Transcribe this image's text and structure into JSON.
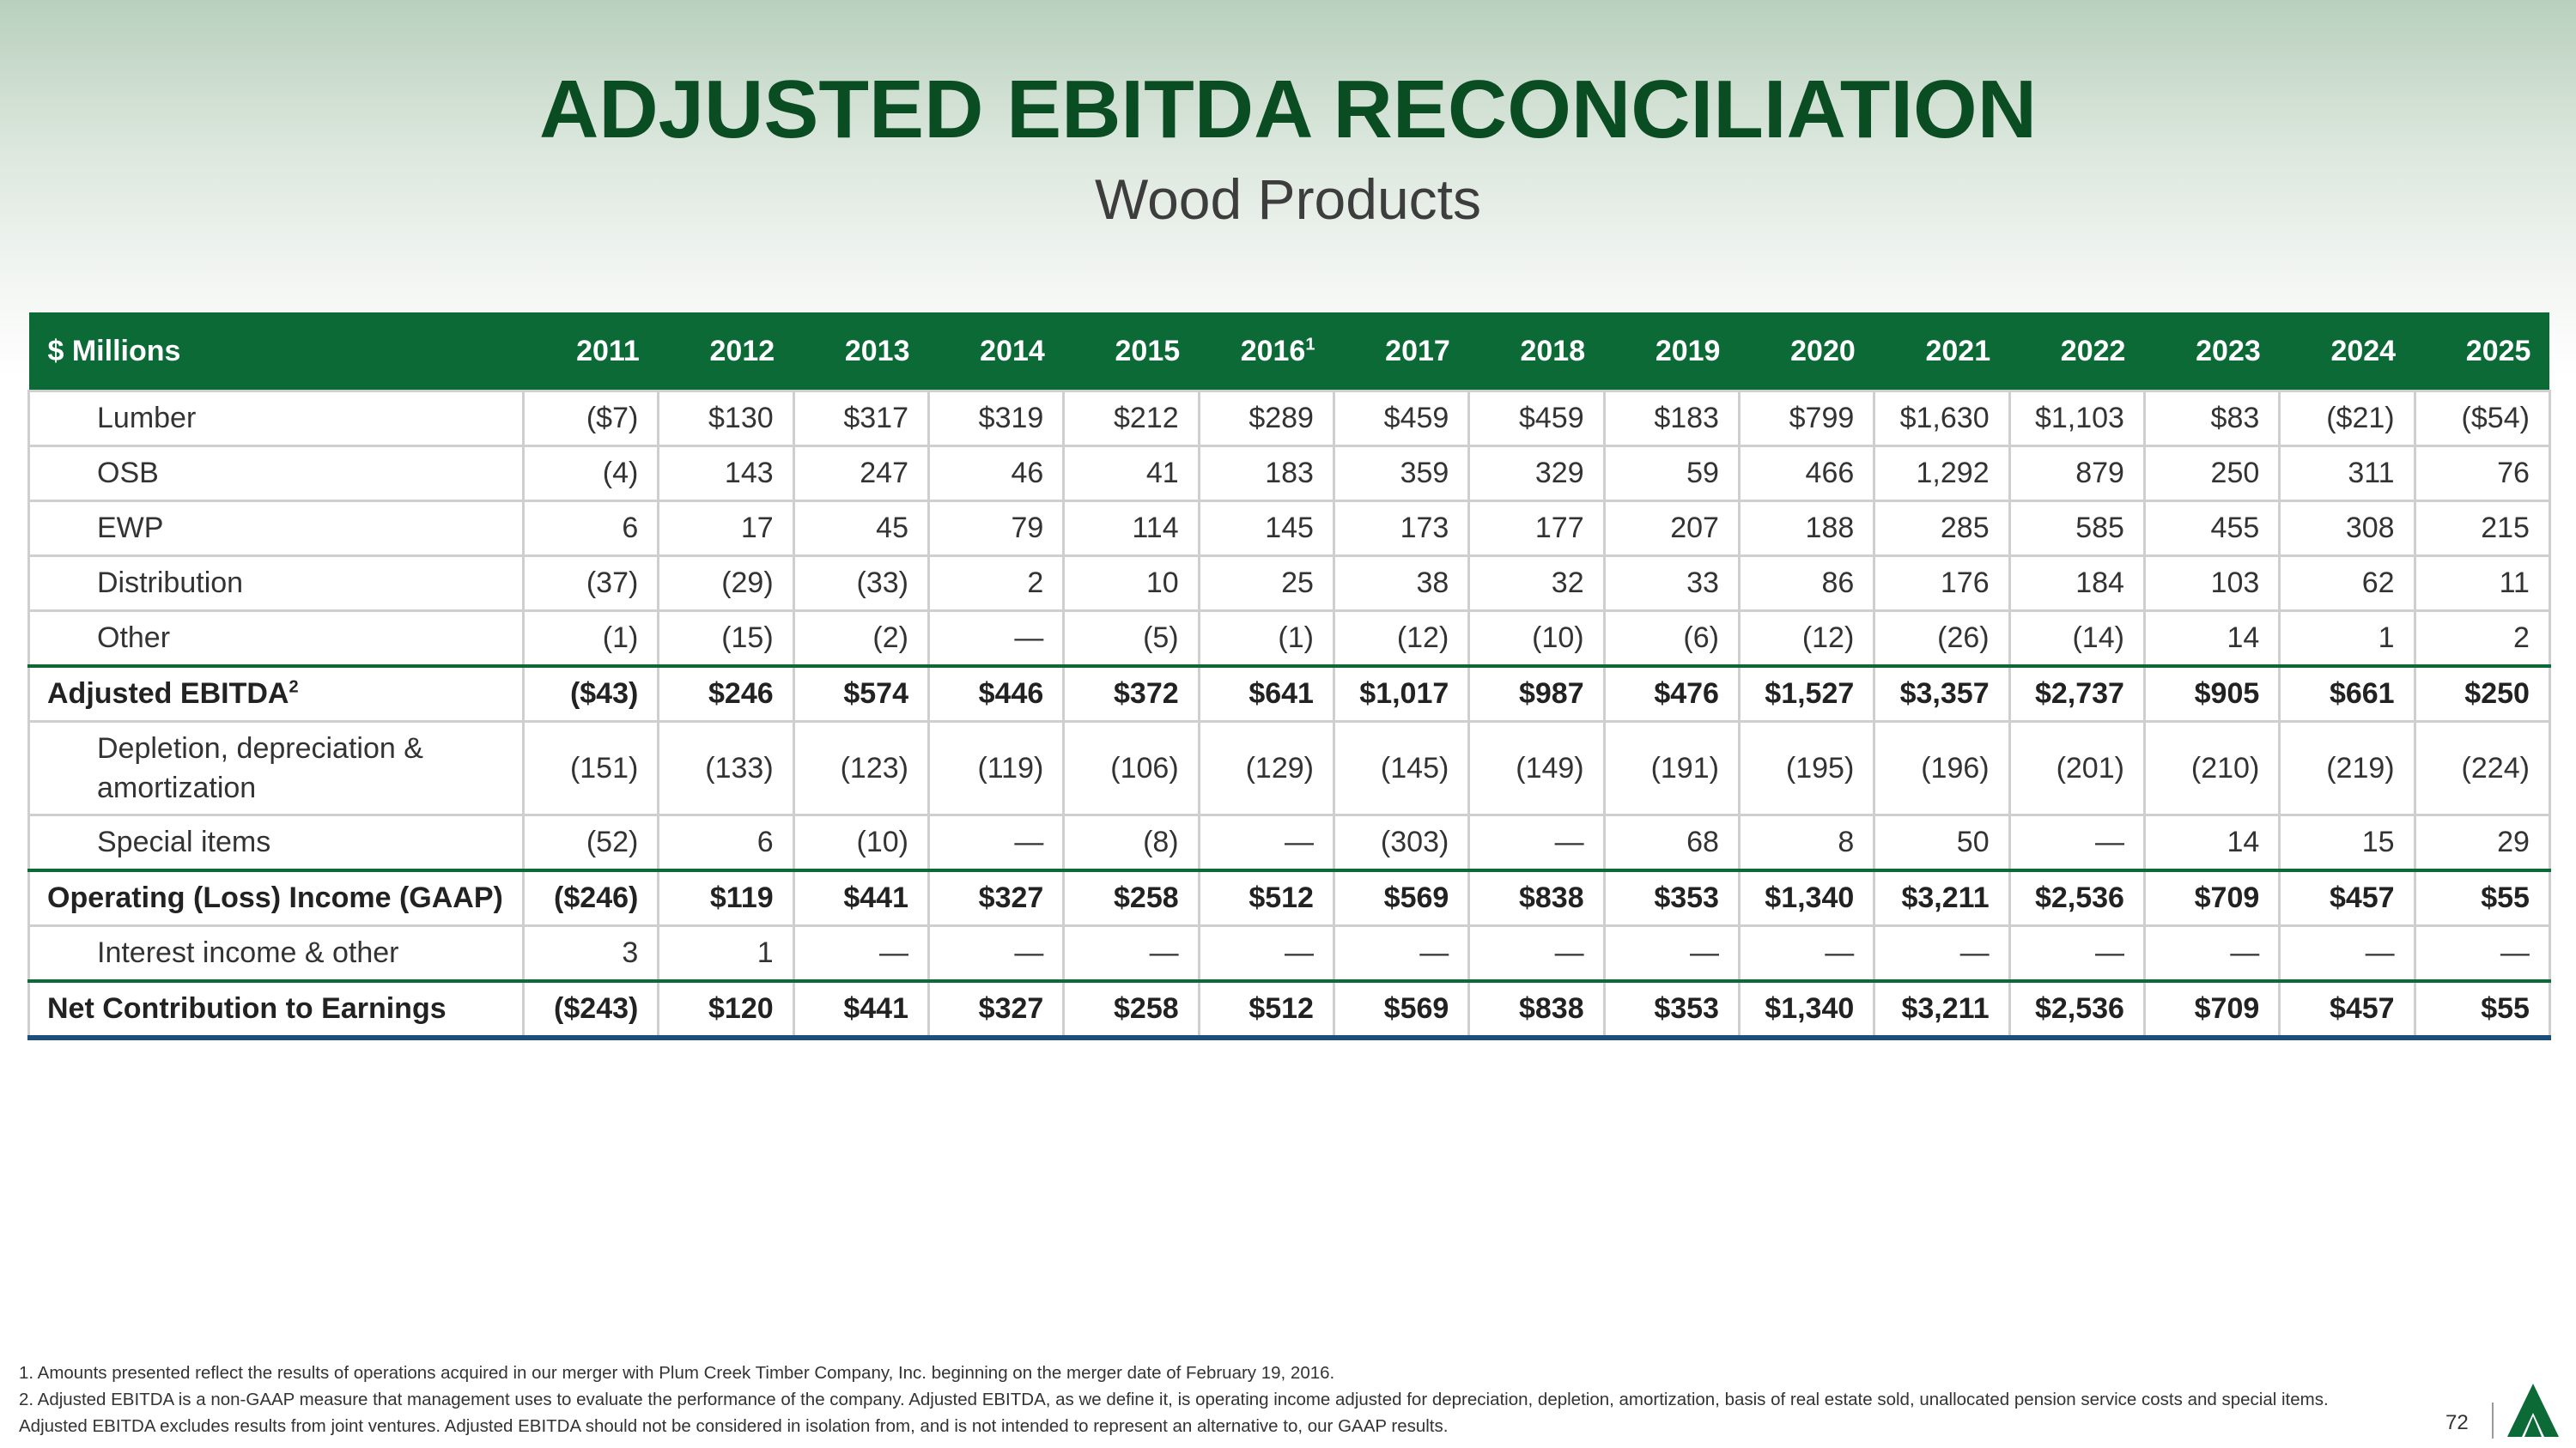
{
  "header": {
    "title": "ADJUSTED EBITDA RECONCILIATION",
    "subtitle": "Wood Products"
  },
  "table": {
    "corner_label": "$ Millions",
    "years": [
      "2011",
      "2012",
      "2013",
      "2014",
      "2015",
      "2016",
      "2017",
      "2018",
      "2019",
      "2020",
      "2021",
      "2022",
      "2023",
      "2024",
      "2025"
    ],
    "year_2016_footnote": "1",
    "rows": [
      {
        "label": "Lumber",
        "values": [
          "($7)",
          "$130",
          "$317",
          "$319",
          "$212",
          "$289",
          "$459",
          "$459",
          "$183",
          "$799",
          "$1,630",
          "$1,103",
          "$83",
          "($21)",
          "($54)"
        ]
      },
      {
        "label": "OSB",
        "values": [
          "(4)",
          "143",
          "247",
          "46",
          "41",
          "183",
          "359",
          "329",
          "59",
          "466",
          "1,292",
          "879",
          "250",
          "311",
          "76"
        ]
      },
      {
        "label": "EWP",
        "values": [
          "6",
          "17",
          "45",
          "79",
          "114",
          "145",
          "173",
          "177",
          "207",
          "188",
          "285",
          "585",
          "455",
          "308",
          "215"
        ]
      },
      {
        "label": "Distribution",
        "values": [
          "(37)",
          "(29)",
          "(33)",
          "2",
          "10",
          "25",
          "38",
          "32",
          "33",
          "86",
          "176",
          "184",
          "103",
          "62",
          "11"
        ]
      },
      {
        "label": "Other",
        "values": [
          "(1)",
          "(15)",
          "(2)",
          "—",
          "(5)",
          "(1)",
          "(12)",
          "(10)",
          "(6)",
          "(12)",
          "(26)",
          "(14)",
          "14",
          "1",
          "2"
        ]
      },
      {
        "label": "Adjusted EBITDA",
        "footnote": "2",
        "values": [
          "($43)",
          "$246",
          "$574",
          "$446",
          "$372",
          "$641",
          "$1,017",
          "$987",
          "$476",
          "$1,527",
          "$3,357",
          "$2,737",
          "$905",
          "$661",
          "$250"
        ]
      },
      {
        "label": "Depletion, depreciation & amortization",
        "values": [
          "(151)",
          "(133)",
          "(123)",
          "(119)",
          "(106)",
          "(129)",
          "(145)",
          "(149)",
          "(191)",
          "(195)",
          "(196)",
          "(201)",
          "(210)",
          "(219)",
          "(224)"
        ]
      },
      {
        "label": "Special items",
        "values": [
          "(52)",
          "6",
          "(10)",
          "—",
          "(8)",
          "—",
          "(303)",
          "—",
          "68",
          "8",
          "50",
          "—",
          "14",
          "15",
          "29"
        ]
      },
      {
        "label": "Operating (Loss) Income (GAAP)",
        "values": [
          "($246)",
          "$119",
          "$441",
          "$327",
          "$258",
          "$512",
          "$569",
          "$838",
          "$353",
          "$1,340",
          "$3,211",
          "$2,536",
          "$709",
          "$457",
          "$55"
        ]
      },
      {
        "label": "Interest income & other",
        "values": [
          "3",
          "1",
          "—",
          "—",
          "—",
          "—",
          "—",
          "—",
          "—",
          "—",
          "—",
          "—",
          "—",
          "—",
          "—"
        ]
      },
      {
        "label": "Net Contribution to Earnings",
        "values": [
          "($243)",
          "$120",
          "$441",
          "$327",
          "$258",
          "$512",
          "$569",
          "$838",
          "$353",
          "$1,340",
          "$3,211",
          "$2,536",
          "$709",
          "$457",
          "$55"
        ]
      }
    ]
  },
  "footnotes": {
    "note1": "1. Amounts presented reflect the results of operations acquired in our merger with Plum Creek Timber Company, Inc. beginning on the merger date of February 19, 2016.",
    "note2": "2. Adjusted EBITDA is a non-GAAP measure that management uses to evaluate the performance of the company. Adjusted EBITDA, as we define it, is operating income adjusted for depreciation, depletion, amortization, basis of real estate sold, unallocated pension service costs and special items. Adjusted EBITDA excludes results from joint ventures. Adjusted EBITDA should not be considered in isolation from, and is not intended to represent an alternative to, our GAAP results."
  },
  "footer": {
    "page_number": "72",
    "logo_icon": "weyerhaeuser-tree-logo-icon",
    "brand_color": "#0b6a36"
  }
}
